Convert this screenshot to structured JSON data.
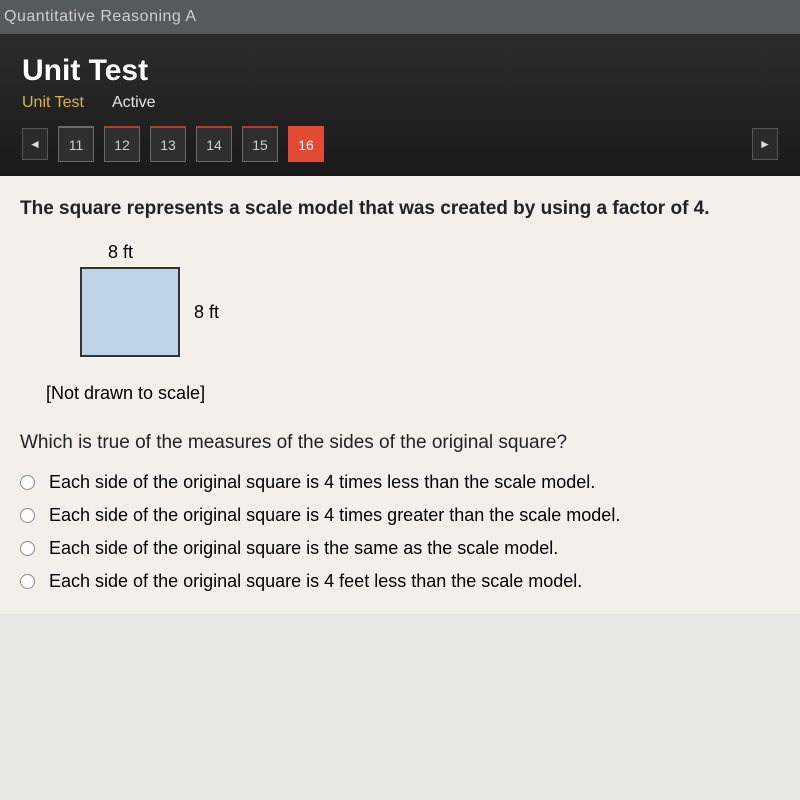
{
  "course_title": "Quantitative Reasoning A",
  "header": {
    "title": "Unit Test",
    "sub_unit": "Unit Test",
    "sub_active": "Active"
  },
  "nav": {
    "prev_glyph": "◄",
    "next_glyph": "►",
    "items": [
      {
        "label": "11",
        "current": false
      },
      {
        "label": "12",
        "current": false
      },
      {
        "label": "13",
        "current": false
      },
      {
        "label": "14",
        "current": false
      },
      {
        "label": "15",
        "current": false
      },
      {
        "label": "16",
        "current": true
      }
    ]
  },
  "question": {
    "stem": "The square represents a scale model that was created by using a factor of 4.",
    "figure": {
      "top_dim": "8 ft",
      "right_dim": "8 ft",
      "fill_color": "#bcd4e6",
      "border_color": "#333333"
    },
    "note": "[Not drawn to scale]",
    "prompt": "Which is true of the measures of the sides of the original square?",
    "options": [
      "Each side of the original square is 4 times less than the scale model.",
      "Each side of the original square is 4 times greater than the scale model.",
      "Each side of the original square is the same as the scale model.",
      "Each side of the original square is 4 feet less than the scale model."
    ]
  }
}
